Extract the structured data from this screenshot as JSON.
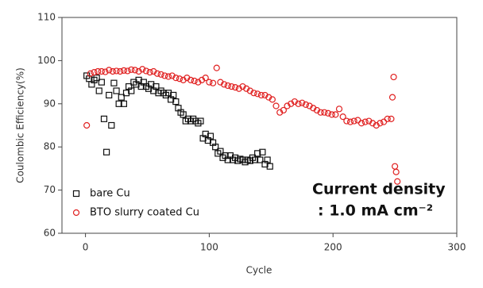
{
  "chart_data": {
    "type": "scatter",
    "x_label": "Cycle",
    "y_label": "Coulombic Efficiency(%)",
    "xlim": [
      -19,
      300
    ],
    "ylim": [
      60,
      110
    ],
    "xticks": [
      0,
      100,
      200,
      300
    ],
    "yticks": [
      60,
      70,
      80,
      90,
      100,
      110
    ],
    "grid": false,
    "legend": "lower left",
    "annotation": [
      "Current density",
      ": 1.0 mA cm⁻²"
    ],
    "series": [
      {
        "name": "bare Cu",
        "color": "#111111",
        "marker": "square",
        "x": [
          1,
          3,
          5,
          7,
          9,
          11,
          13,
          15,
          17,
          19,
          21,
          23,
          25,
          27,
          29,
          31,
          33,
          35,
          37,
          39,
          41,
          43,
          45,
          47,
          49,
          51,
          53,
          55,
          57,
          59,
          61,
          63,
          65,
          67,
          69,
          71,
          73,
          75,
          77,
          79,
          81,
          83,
          85,
          87,
          89,
          91,
          93,
          95,
          97,
          99,
          101,
          103,
          105,
          107,
          109,
          111,
          113,
          115,
          117,
          119,
          121,
          123,
          125,
          127,
          129,
          131,
          133,
          135,
          137,
          139,
          141,
          143,
          145,
          147,
          149
        ],
        "values": [
          96.5,
          95.8,
          94.5,
          95.5,
          96,
          93,
          95,
          86.5,
          78.8,
          92,
          85,
          94.8,
          93,
          90,
          91.5,
          90,
          92.5,
          94,
          93,
          95,
          94.5,
          95.5,
          94,
          95,
          94,
          93.5,
          94.5,
          93,
          94,
          92.5,
          93,
          92.5,
          92,
          92.5,
          91,
          92,
          90.5,
          89,
          88,
          87.5,
          86,
          86.5,
          86,
          86.5,
          86,
          85.5,
          86,
          82,
          83,
          81.5,
          82.5,
          81,
          80,
          78.5,
          79,
          77.5,
          78,
          77,
          78,
          77,
          77.5,
          76.8,
          77.2,
          77,
          76.5,
          77,
          76.8,
          77.5,
          77,
          78.5,
          77,
          78.8,
          76,
          77,
          75.5
        ]
      },
      {
        "name": "BTO slurry coated Cu",
        "color": "#e02020",
        "marker": "circle",
        "x": [
          1,
          4,
          7,
          10,
          13,
          16,
          19,
          22,
          25,
          28,
          31,
          34,
          37,
          40,
          43,
          46,
          49,
          52,
          55,
          58,
          61,
          64,
          67,
          70,
          73,
          76,
          79,
          82,
          85,
          88,
          91,
          94,
          97,
          100,
          103,
          106,
          109,
          112,
          115,
          118,
          121,
          124,
          127,
          130,
          133,
          136,
          139,
          142,
          145,
          148,
          151,
          154,
          157,
          160,
          163,
          166,
          169,
          172,
          175,
          178,
          181,
          184,
          187,
          190,
          193,
          196,
          199,
          202,
          205,
          208,
          211,
          214,
          217,
          220,
          223,
          226,
          229,
          232,
          235,
          238,
          241,
          244,
          247,
          248,
          249,
          250,
          251,
          252
        ],
        "values": [
          85,
          97,
          97.3,
          97.5,
          97.5,
          97.4,
          97.8,
          97.5,
          97.6,
          97.5,
          97.7,
          97.6,
          97.9,
          97.8,
          97.5,
          98,
          97.6,
          97.3,
          97.5,
          97,
          96.8,
          96.5,
          96.3,
          96.5,
          96,
          95.8,
          95.5,
          96,
          95.5,
          95.3,
          95,
          95.5,
          96,
          95,
          94.8,
          98.3,
          95,
          94.5,
          94.2,
          94,
          93.8,
          93.5,
          94,
          93.5,
          93,
          92.5,
          92.3,
          92,
          92,
          91.5,
          91,
          89.5,
          88,
          88.5,
          89.5,
          90,
          90.5,
          90,
          90.2,
          89.8,
          89.5,
          89,
          88.5,
          88,
          88,
          87.8,
          87.5,
          87.5,
          88.8,
          87,
          86,
          85.8,
          86,
          86.2,
          85.5,
          85.8,
          86,
          85.5,
          85,
          85.5,
          85.8,
          86.5,
          86.5,
          91.5,
          96.2,
          75.5,
          74.2,
          72
        ]
      }
    ]
  }
}
